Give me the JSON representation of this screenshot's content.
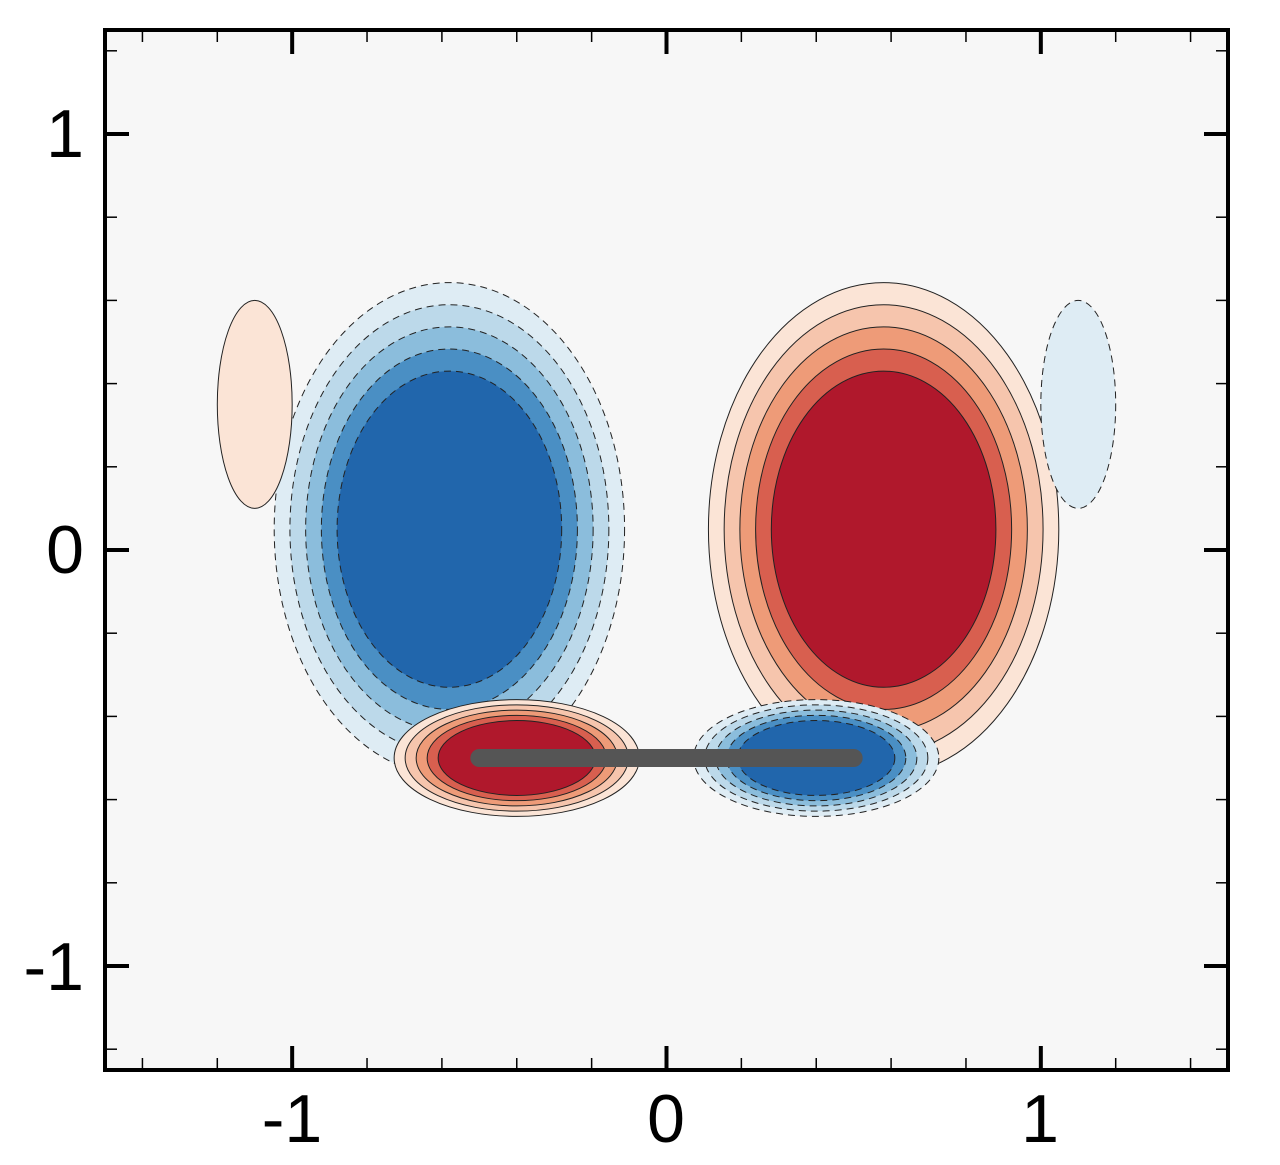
{
  "chart_data": {
    "type": "heatmap",
    "title": "",
    "xlabel": "",
    "ylabel": "",
    "xlim": [
      -1.5,
      1.5
    ],
    "ylim": [
      -1.25,
      1.25
    ],
    "x_ticks": [
      {
        "value": -1,
        "label": "-1"
      },
      {
        "value": 0,
        "label": "0"
      },
      {
        "value": 1,
        "label": "1"
      }
    ],
    "y_ticks": [
      {
        "value": 1,
        "label": "1"
      },
      {
        "value": 0,
        "label": "0"
      },
      {
        "value": -1,
        "label": "-1"
      }
    ],
    "minor_tick_step": 0.2,
    "grid": false,
    "contour_levels": [
      -5,
      -4,
      -3,
      -2,
      -1,
      1,
      2,
      3,
      4,
      5
    ],
    "colors": {
      "background": "#f7f7f7",
      "positive": [
        "#fbe4d6",
        "#f6c5ad",
        "#ee9b78",
        "#d85f4f",
        "#b0182c"
      ],
      "negative": [
        "#deecf4",
        "#bcd9ea",
        "#8bbddc",
        "#4a8fc4",
        "#2166ac"
      ],
      "plate": "#555555"
    },
    "features": [
      {
        "sign": -1,
        "level": 5,
        "x": -0.58,
        "y": 0.05,
        "rx": 0.3,
        "ry": 0.38
      },
      {
        "sign": 1,
        "level": 5,
        "x": 0.58,
        "y": 0.05,
        "rx": 0.3,
        "ry": 0.38
      },
      {
        "sign": 1,
        "level": 5,
        "x": -0.4,
        "y": -0.5,
        "rx": 0.21,
        "ry": 0.09
      },
      {
        "sign": -1,
        "level": 5,
        "x": 0.4,
        "y": -0.5,
        "rx": 0.21,
        "ry": 0.09
      },
      {
        "sign": 1,
        "level": 1,
        "x": -1.1,
        "y": 0.35,
        "rx": 0.1,
        "ry": 0.25
      },
      {
        "sign": -1,
        "level": 1,
        "x": 1.1,
        "y": 0.35,
        "rx": 0.1,
        "ry": 0.25
      }
    ],
    "plate": {
      "x": [
        -0.5,
        0.5
      ],
      "y": -0.5
    }
  }
}
